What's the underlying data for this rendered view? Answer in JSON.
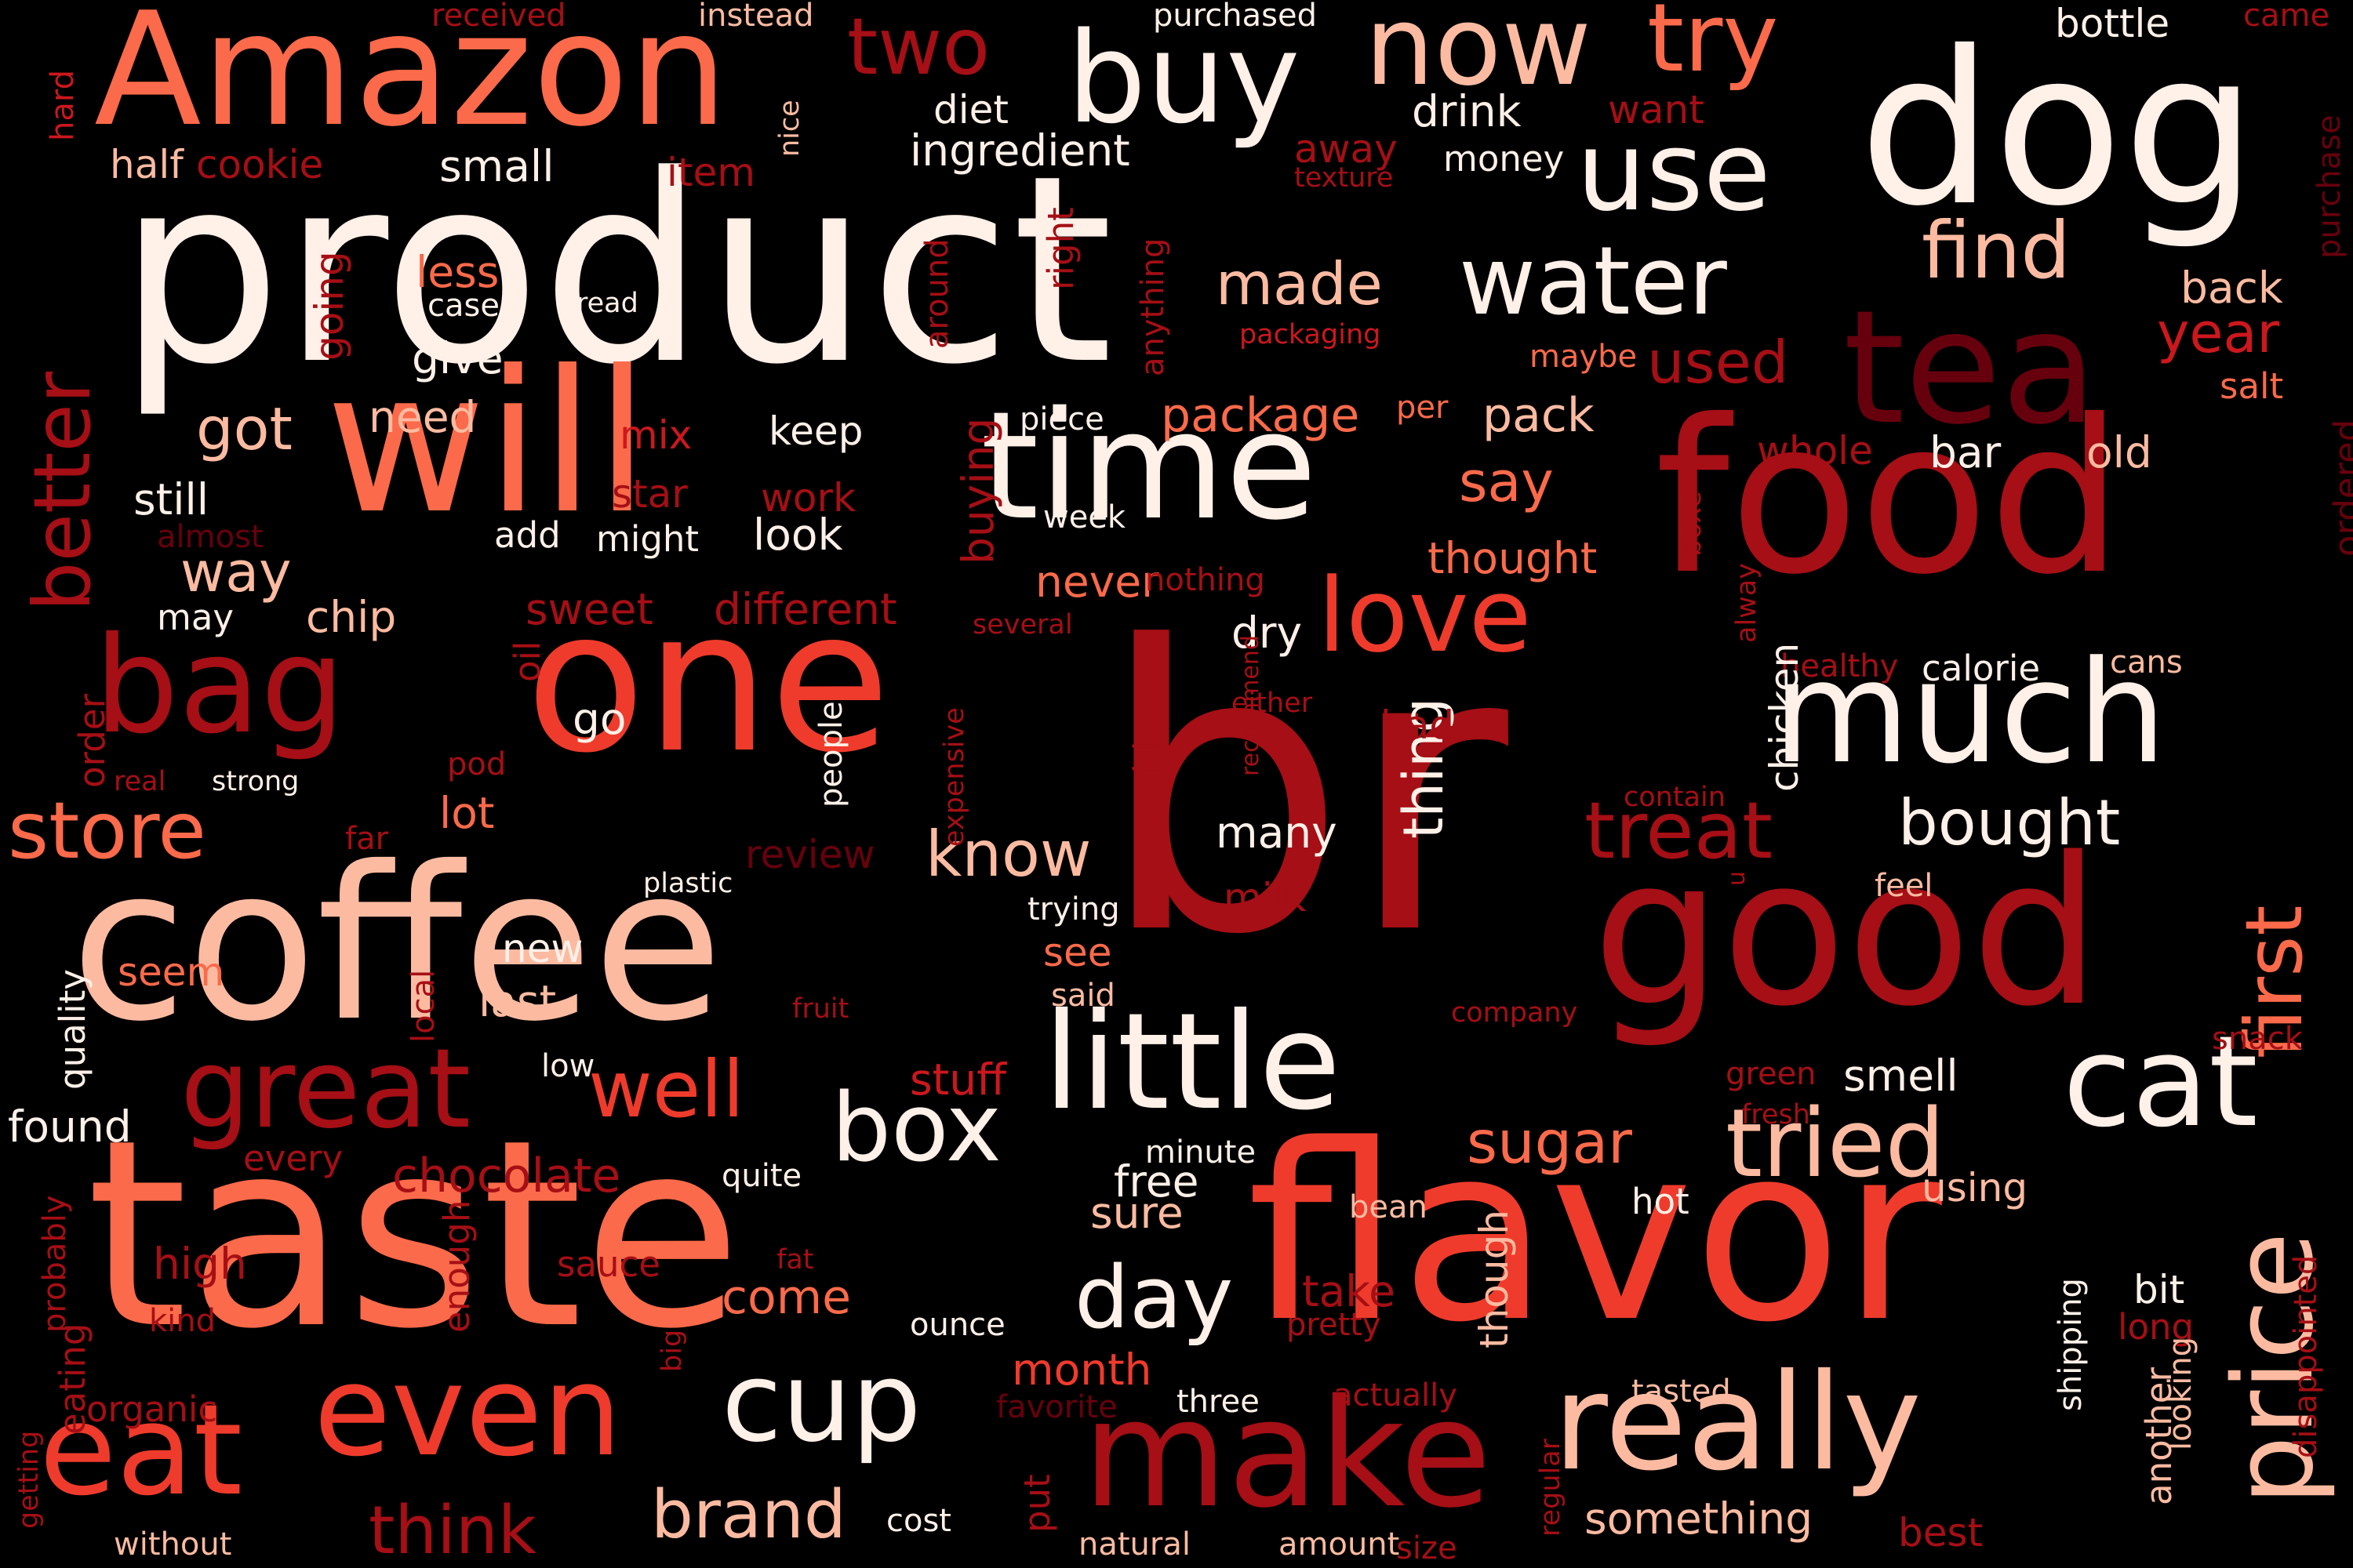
{
  "palette": {
    "background": "#000000",
    "near_white": "#fff0e8",
    "pale": "#fcbba1",
    "salmon": "#fc9272",
    "light_red": "#fb6a4a",
    "red": "#ef3b2c",
    "crimson": "#cb181d",
    "dark_red": "#a50f15",
    "deep_red": "#67000d"
  },
  "words": [
    {
      "text": "br",
      "color": "#a50f15"
    },
    {
      "text": "product",
      "color": "#fff0e8"
    },
    {
      "text": "taste",
      "color": "#fb6a4a"
    },
    {
      "text": "flavor",
      "color": "#ef3b2c"
    },
    {
      "text": "coffee",
      "color": "#fcbba1"
    },
    {
      "text": "food",
      "color": "#a50f15"
    },
    {
      "text": "good",
      "color": "#a50f15"
    },
    {
      "text": "one",
      "color": "#ef3b2c"
    },
    {
      "text": "dog",
      "color": "#fff0e8"
    },
    {
      "text": "will",
      "color": "#fb6a4a"
    },
    {
      "text": "Amazon",
      "color": "#fb6a4a"
    },
    {
      "text": "make",
      "color": "#a50f15"
    },
    {
      "text": "tea",
      "color": "#67000d"
    },
    {
      "text": "much",
      "color": "#fff0e8"
    },
    {
      "text": "time",
      "color": "#fff0e8"
    },
    {
      "text": "little",
      "color": "#fff0e8"
    },
    {
      "text": "really",
      "color": "#fcbba1"
    },
    {
      "text": "bag",
      "color": "#a50f15"
    },
    {
      "text": "even",
      "color": "#ef3b2c"
    },
    {
      "text": "eat",
      "color": "#ef3b2c"
    },
    {
      "text": "cat",
      "color": "#fff0e8"
    },
    {
      "text": "buy",
      "color": "#fff0e8"
    },
    {
      "text": "great",
      "color": "#a50f15"
    },
    {
      "text": "love",
      "color": "#ef3b2c"
    },
    {
      "text": "cup",
      "color": "#fff0e8"
    },
    {
      "text": "price",
      "color": "#fcbba1"
    },
    {
      "text": "use",
      "color": "#fff0e8"
    },
    {
      "text": "now",
      "color": "#fcbba1"
    },
    {
      "text": "water",
      "color": "#fff0e8"
    },
    {
      "text": "tried",
      "color": "#fcbba1"
    },
    {
      "text": "store",
      "color": "#fb6a4a"
    },
    {
      "text": "box",
      "color": "#fff0e8"
    },
    {
      "text": "day",
      "color": "#fff0e8"
    },
    {
      "text": "well",
      "color": "#ef3b2c"
    },
    {
      "text": "try",
      "color": "#fb6a4a"
    },
    {
      "text": "treat",
      "color": "#a50f15"
    },
    {
      "text": "better",
      "color": "#a50f15"
    },
    {
      "text": "first",
      "color": "#fb6a4a"
    },
    {
      "text": "find",
      "color": "#fcbba1"
    },
    {
      "text": "two",
      "color": "#a50f15"
    },
    {
      "text": "bought",
      "color": "#fff0e8"
    },
    {
      "text": "think",
      "color": "#a50f15"
    },
    {
      "text": "brand",
      "color": "#fcbba1"
    },
    {
      "text": "know",
      "color": "#fcbba1"
    },
    {
      "text": "sugar",
      "color": "#fb6a4a"
    },
    {
      "text": "made",
      "color": "#fcbba1"
    },
    {
      "text": "got",
      "color": "#fcbba1"
    },
    {
      "text": "way",
      "color": "#fcbba1"
    },
    {
      "text": "used",
      "color": "#a50f15"
    },
    {
      "text": "year",
      "color": "#cb181d"
    },
    {
      "text": "thing",
      "color": "#fff0e8"
    },
    {
      "text": "say",
      "color": "#fb6a4a"
    },
    {
      "text": "something",
      "color": "#fcbba1"
    },
    {
      "text": "chocolate",
      "color": "#a50f15"
    },
    {
      "text": "found",
      "color": "#fff0e8"
    },
    {
      "text": "stuff",
      "color": "#cb181d"
    },
    {
      "text": "pack",
      "color": "#fcbba1"
    },
    {
      "text": "package",
      "color": "#fb6a4a"
    },
    {
      "text": "thought",
      "color": "#fb6a4a"
    },
    {
      "text": "different",
      "color": "#a50f15"
    },
    {
      "text": "sweet",
      "color": "#a50f15"
    },
    {
      "text": "ingredient",
      "color": "#fff0e8"
    },
    {
      "text": "small",
      "color": "#fff0e8"
    },
    {
      "text": "half",
      "color": "#fcbba1"
    },
    {
      "text": "cookie",
      "color": "#a50f15"
    },
    {
      "text": "item",
      "color": "#a50f15"
    },
    {
      "text": "drink",
      "color": "#fff0e8"
    },
    {
      "text": "want",
      "color": "#a50f15"
    },
    {
      "text": "diet",
      "color": "#fff0e8"
    },
    {
      "text": "away",
      "color": "#a50f15"
    },
    {
      "text": "money",
      "color": "#fff0e8"
    },
    {
      "text": "bottle",
      "color": "#fff0e8"
    },
    {
      "text": "purchased",
      "color": "#fff0e8"
    },
    {
      "text": "received",
      "color": "#a50f15"
    },
    {
      "text": "instead",
      "color": "#fcbba1"
    },
    {
      "text": "came",
      "color": "#a50f15"
    },
    {
      "text": "hard",
      "color": "#cb181d"
    },
    {
      "text": "nice",
      "color": "#fcbba1"
    },
    {
      "text": "texture",
      "color": "#a50f15"
    },
    {
      "text": "purchase",
      "color": "#67000d"
    },
    {
      "text": "back",
      "color": "#fcbba1"
    },
    {
      "text": "packaging",
      "color": "#cb181d"
    },
    {
      "text": "less",
      "color": "#fb6a4a"
    },
    {
      "text": "case",
      "color": "#fff0e8"
    },
    {
      "text": "read",
      "color": "#fff0e8"
    },
    {
      "text": "give",
      "color": "#fff0e8"
    },
    {
      "text": "going",
      "color": "#a50f15"
    },
    {
      "text": "right",
      "color": "#a50f15"
    },
    {
      "text": "around",
      "color": "#a50f15"
    },
    {
      "text": "anything",
      "color": "#a50f15"
    },
    {
      "text": "maybe",
      "color": "#fb6a4a"
    },
    {
      "text": "salt",
      "color": "#fb6a4a"
    },
    {
      "text": "need",
      "color": "#fcbba1"
    },
    {
      "text": "mix",
      "color": "#cb181d"
    },
    {
      "text": "keep",
      "color": "#fff0e8"
    },
    {
      "text": "piece",
      "color": "#fff0e8"
    },
    {
      "text": "per",
      "color": "#fb6a4a"
    },
    {
      "text": "whole",
      "color": "#a50f15"
    },
    {
      "text": "bar",
      "color": "#fff0e8"
    },
    {
      "text": "old",
      "color": "#fcbba1"
    },
    {
      "text": "still",
      "color": "#fff0e8"
    },
    {
      "text": "star",
      "color": "#a50f15"
    },
    {
      "text": "work",
      "color": "#a50f15"
    },
    {
      "text": "buying",
      "color": "#a50f15"
    },
    {
      "text": "week",
      "color": "#fff0e8"
    },
    {
      "text": "almost",
      "color": "#67000d"
    },
    {
      "text": "add",
      "color": "#fff0e8"
    },
    {
      "text": "might",
      "color": "#fff0e8"
    },
    {
      "text": "look",
      "color": "#fff0e8"
    },
    {
      "text": "boxe",
      "color": "#a50f15"
    },
    {
      "text": "ordered",
      "color": "#67000d"
    },
    {
      "text": "may",
      "color": "#fff0e8"
    },
    {
      "text": "chip",
      "color": "#fcbba1"
    },
    {
      "text": "never",
      "color": "#fb6a4a"
    },
    {
      "text": "nothing",
      "color": "#a50f15"
    },
    {
      "text": "oil",
      "color": "#a50f15"
    },
    {
      "text": "several",
      "color": "#a50f15"
    },
    {
      "text": "dry",
      "color": "#fff0e8"
    },
    {
      "text": "alway",
      "color": "#a50f15"
    },
    {
      "text": "healthy",
      "color": "#a50f15"
    },
    {
      "text": "calorie",
      "color": "#fff0e8"
    },
    {
      "text": "cans",
      "color": "#fcbba1"
    },
    {
      "text": "order",
      "color": "#a50f15"
    },
    {
      "text": "go",
      "color": "#fff0e8"
    },
    {
      "text": "expensive",
      "color": "#a50f15"
    },
    {
      "text": "problem",
      "color": "#a50f15"
    },
    {
      "text": "recommend",
      "color": "#a50f15"
    },
    {
      "text": "either",
      "color": "#a50f15"
    },
    {
      "text": "bad",
      "color": "#a50f15"
    },
    {
      "text": "chicken",
      "color": "#fff0e8"
    },
    {
      "text": "pod",
      "color": "#a50f15"
    },
    {
      "text": "real",
      "color": "#a50f15"
    },
    {
      "text": "strong",
      "color": "#fff0e8"
    },
    {
      "text": "people",
      "color": "#fff0e8"
    },
    {
      "text": "contain",
      "color": "#a50f15"
    },
    {
      "text": "far",
      "color": "#a50f15"
    },
    {
      "text": "lot",
      "color": "#fb6a4a"
    },
    {
      "text": "review",
      "color": "#67000d"
    },
    {
      "text": "many",
      "color": "#fff0e8"
    },
    {
      "text": "u",
      "color": "#a50f15"
    },
    {
      "text": "feel",
      "color": "#fcbba1"
    },
    {
      "text": "plastic",
      "color": "#fff0e8"
    },
    {
      "text": "quality",
      "color": "#fff0e8"
    },
    {
      "text": "trying",
      "color": "#fff0e8"
    },
    {
      "text": "milk",
      "color": "#a50f15"
    },
    {
      "text": "new",
      "color": "#fff0e8"
    },
    {
      "text": "see",
      "color": "#fb6a4a"
    },
    {
      "text": "seem",
      "color": "#fb6a4a"
    },
    {
      "text": "local",
      "color": "#a50f15"
    },
    {
      "text": "last",
      "color": "#fcbba1"
    },
    {
      "text": "said",
      "color": "#fcbba1"
    },
    {
      "text": "fruit",
      "color": "#a50f15"
    },
    {
      "text": "company",
      "color": "#a50f15"
    },
    {
      "text": "low",
      "color": "#fff0e8"
    },
    {
      "text": "green",
      "color": "#a50f15"
    },
    {
      "text": "smell",
      "color": "#fff0e8"
    },
    {
      "text": "snack",
      "color": "#a50f15"
    },
    {
      "text": "fresh",
      "color": "#a50f15"
    },
    {
      "text": "every",
      "color": "#a50f15"
    },
    {
      "text": "minute",
      "color": "#fff0e8"
    },
    {
      "text": "quite",
      "color": "#fff0e8"
    },
    {
      "text": "free",
      "color": "#fff0e8"
    },
    {
      "text": "using",
      "color": "#fcbba1"
    },
    {
      "text": "probably",
      "color": "#a50f15"
    },
    {
      "text": "high",
      "color": "#a50f15"
    },
    {
      "text": "sauce",
      "color": "#a50f15"
    },
    {
      "text": "fat",
      "color": "#a50f15"
    },
    {
      "text": "sure",
      "color": "#fcbba1"
    },
    {
      "text": "bean",
      "color": "#fcbba1"
    },
    {
      "text": "hot",
      "color": "#fff0e8"
    },
    {
      "text": "enough",
      "color": "#a50f15"
    },
    {
      "text": "come",
      "color": "#fb6a4a"
    },
    {
      "text": "take",
      "color": "#a50f15"
    },
    {
      "text": "bit",
      "color": "#fff0e8"
    },
    {
      "text": "kind",
      "color": "#a50f15"
    },
    {
      "text": "ounce",
      "color": "#fff0e8"
    },
    {
      "text": "pretty",
      "color": "#a50f15"
    },
    {
      "text": "though",
      "color": "#fcbba1"
    },
    {
      "text": "shipping",
      "color": "#fff0e8"
    },
    {
      "text": "long",
      "color": "#a50f15"
    },
    {
      "text": "eating",
      "color": "#a50f15"
    },
    {
      "text": "big",
      "color": "#a50f15"
    },
    {
      "text": "month",
      "color": "#ef3b2c"
    },
    {
      "text": "disappointed",
      "color": "#a50f15"
    },
    {
      "text": "organic",
      "color": "#a50f15"
    },
    {
      "text": "favorite",
      "color": "#67000d"
    },
    {
      "text": "actually",
      "color": "#a50f15"
    },
    {
      "text": "three",
      "color": "#fff0e8"
    },
    {
      "text": "tasted",
      "color": "#fcbba1"
    },
    {
      "text": "looking",
      "color": "#fcbba1"
    },
    {
      "text": "another",
      "color": "#fcbba1"
    },
    {
      "text": "getting",
      "color": "#a50f15"
    },
    {
      "text": "put",
      "color": "#a50f15"
    },
    {
      "text": "regular",
      "color": "#a50f15"
    },
    {
      "text": "cost",
      "color": "#fff0e8"
    },
    {
      "text": "without",
      "color": "#fcbba1"
    },
    {
      "text": "natural",
      "color": "#fcbba1"
    },
    {
      "text": "amount",
      "color": "#fcbba1"
    },
    {
      "text": "size",
      "color": "#a50f15"
    },
    {
      "text": "best",
      "color": "#a50f15"
    }
  ]
}
